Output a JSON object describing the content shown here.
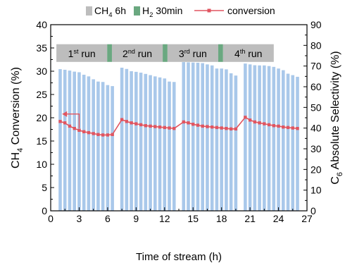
{
  "chart_data": {
    "type": "bar+line",
    "legend": {
      "placement": "top",
      "items": [
        {
          "base": "CH",
          "sub": "4",
          "tail": " 6h",
          "color": "#bdbdbd",
          "kind": "box"
        },
        {
          "base": "H",
          "sub": "2",
          "tail": " 30min",
          "color": "#6aa880",
          "kind": "box"
        },
        {
          "base": "conversion",
          "sub": "",
          "tail": "",
          "color": "#e05560",
          "kind": "line-marker"
        }
      ]
    },
    "xlabel": "Time of stream (h)",
    "ylabel_left": {
      "base": "CH",
      "sub": "4",
      "tail": " Conversion (%)"
    },
    "ylabel_right": {
      "base": "C",
      "sub": "6",
      "tail": " Absolute Selectivity (%)"
    },
    "x_range": [
      0,
      27
    ],
    "x_ticks": [
      0,
      3,
      6,
      9,
      12,
      15,
      18,
      21,
      24,
      27
    ],
    "y_left_range": [
      0,
      40
    ],
    "y_left_ticks": [
      0,
      5,
      10,
      15,
      20,
      25,
      30,
      35,
      40
    ],
    "y_right_range": [
      0,
      90
    ],
    "y_right_ticks": [
      0,
      10,
      20,
      30,
      40,
      50,
      60,
      70,
      80,
      90
    ],
    "runs": [
      {
        "label_num": "1",
        "label_sup": "st",
        "label_tail": " run",
        "x_start": 0.6,
        "x_end": 5.95
      },
      {
        "label_num": "2",
        "label_sup": "nd",
        "label_tail": " run",
        "x_start": 6.45,
        "x_end": 11.8
      },
      {
        "label_num": "3",
        "label_sup": "rd",
        "label_tail": " run",
        "x_start": 12.3,
        "x_end": 17.65
      },
      {
        "label_num": "4",
        "label_sup": "th",
        "label_tail": " run",
        "x_start": 18.15,
        "x_end": 23.5
      }
    ],
    "h2_gaps": [
      [
        5.95,
        6.45
      ],
      [
        11.8,
        12.3
      ],
      [
        17.65,
        18.15
      ]
    ],
    "selectivity_bars": {
      "name": "C6 Absolute Selectivity",
      "color": "#a9c8ea",
      "x": [
        1.0,
        1.5,
        2.0,
        2.5,
        3.0,
        3.5,
        4.0,
        4.5,
        5.0,
        5.5,
        6.0,
        6.5,
        7.5,
        8.0,
        8.5,
        9.0,
        9.5,
        10.0,
        10.5,
        11.0,
        11.5,
        12.0,
        12.5,
        13.0,
        14.0,
        14.5,
        15.0,
        15.5,
        16.0,
        16.5,
        17.0,
        17.5,
        18.0,
        18.5,
        19.0,
        19.5,
        20.5,
        21.0,
        21.5,
        22.0,
        22.5,
        23.0,
        23.5,
        24.0,
        24.5,
        25.0,
        25.5,
        26.0
      ],
      "values": [
        68.5,
        68.2,
        67.8,
        67.3,
        67.0,
        65.8,
        65.0,
        63.6,
        62.5,
        62.3,
        60.8,
        60.3,
        69.2,
        68.6,
        67.5,
        67.2,
        66.8,
        66.2,
        65.6,
        65.0,
        64.5,
        64.0,
        62.5,
        62.3,
        71.9,
        71.8,
        71.7,
        71.6,
        71.4,
        70.8,
        70.3,
        68.8,
        68.8,
        68.4,
        66.5,
        65.4,
        71.2,
        70.8,
        70.4,
        70.3,
        70.3,
        70.0,
        69.6,
        68.8,
        68.0,
        66.3,
        65.6,
        64.8
      ]
    },
    "conversion_line": {
      "name": "conversion",
      "color": "#e05560",
      "x": [
        1.0,
        1.5,
        2.0,
        2.5,
        3.0,
        3.5,
        4.0,
        4.5,
        5.0,
        5.5,
        6.0,
        6.5,
        7.5,
        8.0,
        8.5,
        9.0,
        9.5,
        10.0,
        10.5,
        11.0,
        11.5,
        12.0,
        12.5,
        13.0,
        14.0,
        14.5,
        15.0,
        15.5,
        16.0,
        16.5,
        17.0,
        17.5,
        18.0,
        18.5,
        19.0,
        19.5,
        20.5,
        21.0,
        21.5,
        22.0,
        22.5,
        23.0,
        23.5,
        24.0,
        24.5,
        25.0,
        25.5,
        26.0
      ],
      "values": [
        19.2,
        18.9,
        18.2,
        17.7,
        17.3,
        17.0,
        16.8,
        16.6,
        16.4,
        16.3,
        16.3,
        16.4,
        19.6,
        19.2,
        18.9,
        18.7,
        18.5,
        18.3,
        18.2,
        18.1,
        18.0,
        17.9,
        17.8,
        17.7,
        19.1,
        18.9,
        18.6,
        18.4,
        18.2,
        18.1,
        18.0,
        17.9,
        17.8,
        17.7,
        17.6,
        17.6,
        20.1,
        19.5,
        19.1,
        18.9,
        18.7,
        18.5,
        18.3,
        18.2,
        18.0,
        17.9,
        17.8,
        17.7
      ]
    },
    "arrow_annotation": {
      "from_x": 3.0,
      "to_x": 1.2,
      "y_left": 20.8,
      "direction": "left-axis"
    }
  }
}
